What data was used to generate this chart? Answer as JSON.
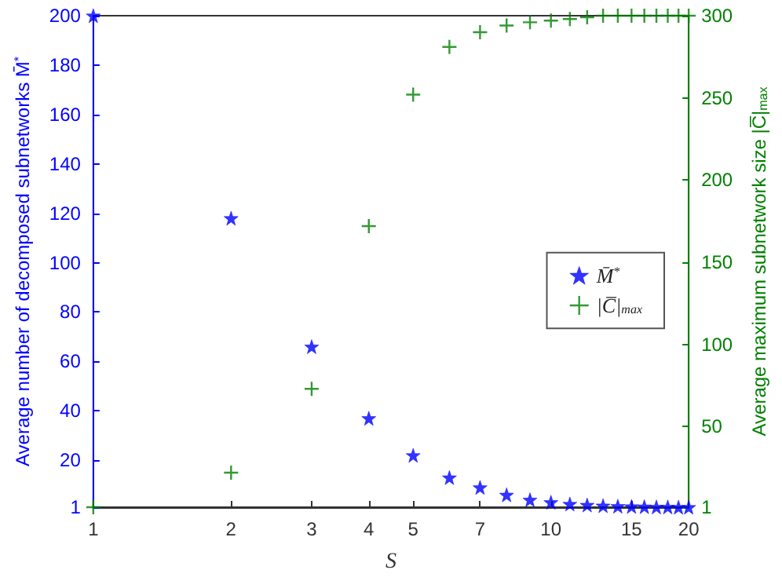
{
  "chart_data": {
    "type": "scatter",
    "xlabel": "S",
    "ylabel": "Average number of decomposed subnetworks M̄$^{*}$",
    "y2label": "Average maximum subnetwork size |C̅|$_{max}$",
    "x": [
      1,
      2,
      3,
      4,
      5,
      6,
      7,
      8,
      9,
      10,
      11,
      12,
      13,
      14,
      15,
      16,
      17,
      18,
      19,
      20
    ],
    "series": [
      {
        "name": "M̄$^{*}$",
        "color": "#0000ff",
        "marker": "star",
        "values": [
          200,
          118,
          66,
          37,
          22,
          13,
          9,
          6,
          4,
          3,
          2.3,
          1.9,
          1.6,
          1.4,
          1.3,
          1.2,
          1.1,
          1.1,
          1,
          1
        ]
      },
      {
        "name": "|C̅|$_{max}$",
        "color": "#008000",
        "marker": "cross",
        "axis": "y2",
        "values": [
          1,
          22,
          73,
          172,
          252,
          281,
          290,
          294,
          296,
          297,
          298,
          299,
          300,
          300,
          300,
          300,
          300,
          300,
          300,
          300
        ]
      }
    ],
    "log": "x",
    "xlim": [
      1,
      20
    ],
    "xticks": [
      1,
      2,
      3,
      4,
      5,
      7,
      10,
      15,
      20
    ],
    "ylim": [
      1,
      200
    ],
    "yticks": [
      1,
      20,
      40,
      60,
      80,
      100,
      120,
      140,
      160,
      180,
      200
    ],
    "y2lim": [
      1,
      300
    ],
    "y2ticks": [
      1,
      50,
      100,
      150,
      200,
      250,
      300
    ],
    "grid": false,
    "legend": "right"
  }
}
